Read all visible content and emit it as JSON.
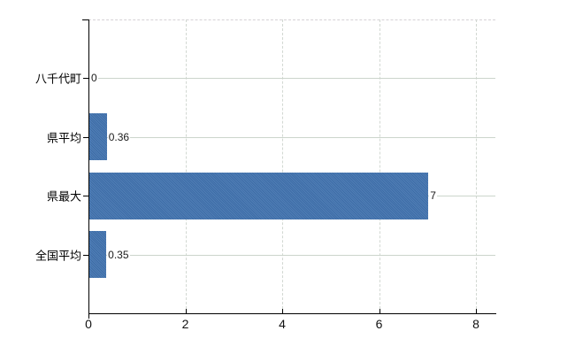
{
  "chart_data": {
    "type": "bar",
    "orientation": "horizontal",
    "categories": [
      "八千代町",
      "県平均",
      "県最大",
      "全国平均"
    ],
    "values": [
      0,
      0.36,
      7,
      0.35
    ],
    "value_labels": [
      "0",
      "0.36",
      "7",
      "0.35"
    ],
    "x_ticks": [
      0,
      2,
      4,
      6,
      8
    ],
    "x_tick_labels": [
      "0",
      "2",
      "4",
      "6",
      "8"
    ],
    "xlim": [
      0,
      8.4
    ],
    "title": "",
    "xlabel": "",
    "ylabel": "",
    "legend": "none",
    "grid": {
      "horizontal": "solid",
      "vertical": "dashed",
      "top_border": "dashed"
    },
    "colors": {
      "bar": "#4173af",
      "axis": "#000000",
      "h_gridline": "#ccd5cc",
      "v_gridline": "#d2d8d2",
      "top_border": "#d6d2d6",
      "background": "#ffffff",
      "tick_label": "#111111",
      "value_label": "#1a1a1a"
    }
  }
}
